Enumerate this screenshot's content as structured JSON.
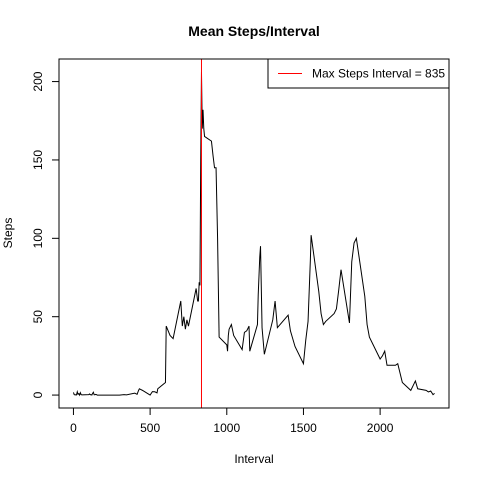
{
  "chart_data": {
    "type": "line",
    "title": "Mean Steps/Interval",
    "x_label": "Interval",
    "y_label": "Steps",
    "x": [
      0,
      5,
      10,
      15,
      20,
      25,
      30,
      35,
      40,
      45,
      50,
      55,
      100,
      105,
      110,
      115,
      120,
      125,
      130,
      135,
      140,
      145,
      150,
      155,
      200,
      230,
      300,
      330,
      345,
      400,
      415,
      425,
      430,
      440,
      450,
      500,
      515,
      530,
      545,
      550,
      600,
      605,
      630,
      650,
      700,
      710,
      720,
      730,
      740,
      750,
      800,
      810,
      815,
      820,
      825,
      830,
      835,
      840,
      845,
      850,
      855,
      900,
      910,
      920,
      930,
      940,
      950,
      1000,
      1005,
      1010,
      1015,
      1030,
      1045,
      1100,
      1115,
      1130,
      1145,
      1150,
      1200,
      1205,
      1215,
      1220,
      1230,
      1245,
      1300,
      1315,
      1330,
      1400,
      1415,
      1430,
      1445,
      1500,
      1515,
      1530,
      1545,
      1550,
      1600,
      1615,
      1630,
      1645,
      1700,
      1715,
      1730,
      1745,
      1800,
      1815,
      1830,
      1845,
      1900,
      1915,
      1930,
      2000,
      2015,
      2030,
      2045,
      2100,
      2115,
      2130,
      2145,
      2200,
      2215,
      2230,
      2245,
      2300,
      2315,
      2330,
      2345,
      2355
    ],
    "series": [
      {
        "color": "#000000",
        "values": [
          1.7,
          0.3,
          0.1,
          0.2,
          0.1,
          2.1,
          0.5,
          0.9,
          0,
          1.5,
          0.3,
          0.1,
          0.3,
          0.7,
          0.2,
          0.3,
          0,
          1.1,
          1.8,
          0.2,
          0.2,
          0.4,
          0.3,
          0,
          0,
          0,
          0,
          0.3,
          0.1,
          1.2,
          0.5,
          3,
          4,
          3.5,
          3,
          0,
          2.2,
          2.1,
          1.4,
          4,
          8,
          44,
          38,
          36,
          60,
          44,
          50,
          42,
          48,
          44,
          68,
          60,
          60,
          72,
          70,
          150,
          206,
          170,
          182,
          170,
          165,
          162,
          153,
          145,
          145,
          100,
          37,
          32,
          28,
          38,
          42,
          45,
          38,
          29,
          40,
          41,
          44,
          28,
          45,
          64,
          88,
          95,
          43,
          26,
          48,
          60,
          43,
          51,
          41,
          36,
          31,
          20,
          35,
          47,
          86,
          102,
          66,
          52,
          45,
          47,
          52,
          55,
          67,
          80,
          46,
          85,
          97,
          100,
          63,
          45,
          37,
          23,
          25,
          28,
          19,
          19,
          20,
          14,
          8,
          3,
          6,
          9,
          4,
          3,
          2,
          2.6,
          0.3,
          1.1
        ]
      }
    ],
    "vline": {
      "value": 835,
      "color": "#ff0000",
      "label": "Max Steps Interval = 835"
    },
    "legend": "topright",
    "xlim": [
      -94.2,
      2449.2
    ],
    "ylim": [
      -8.25,
      214.4
    ],
    "xticks": [
      0,
      500,
      1000,
      1500,
      2000
    ],
    "yticks": [
      0,
      50,
      100,
      150,
      200
    ]
  }
}
